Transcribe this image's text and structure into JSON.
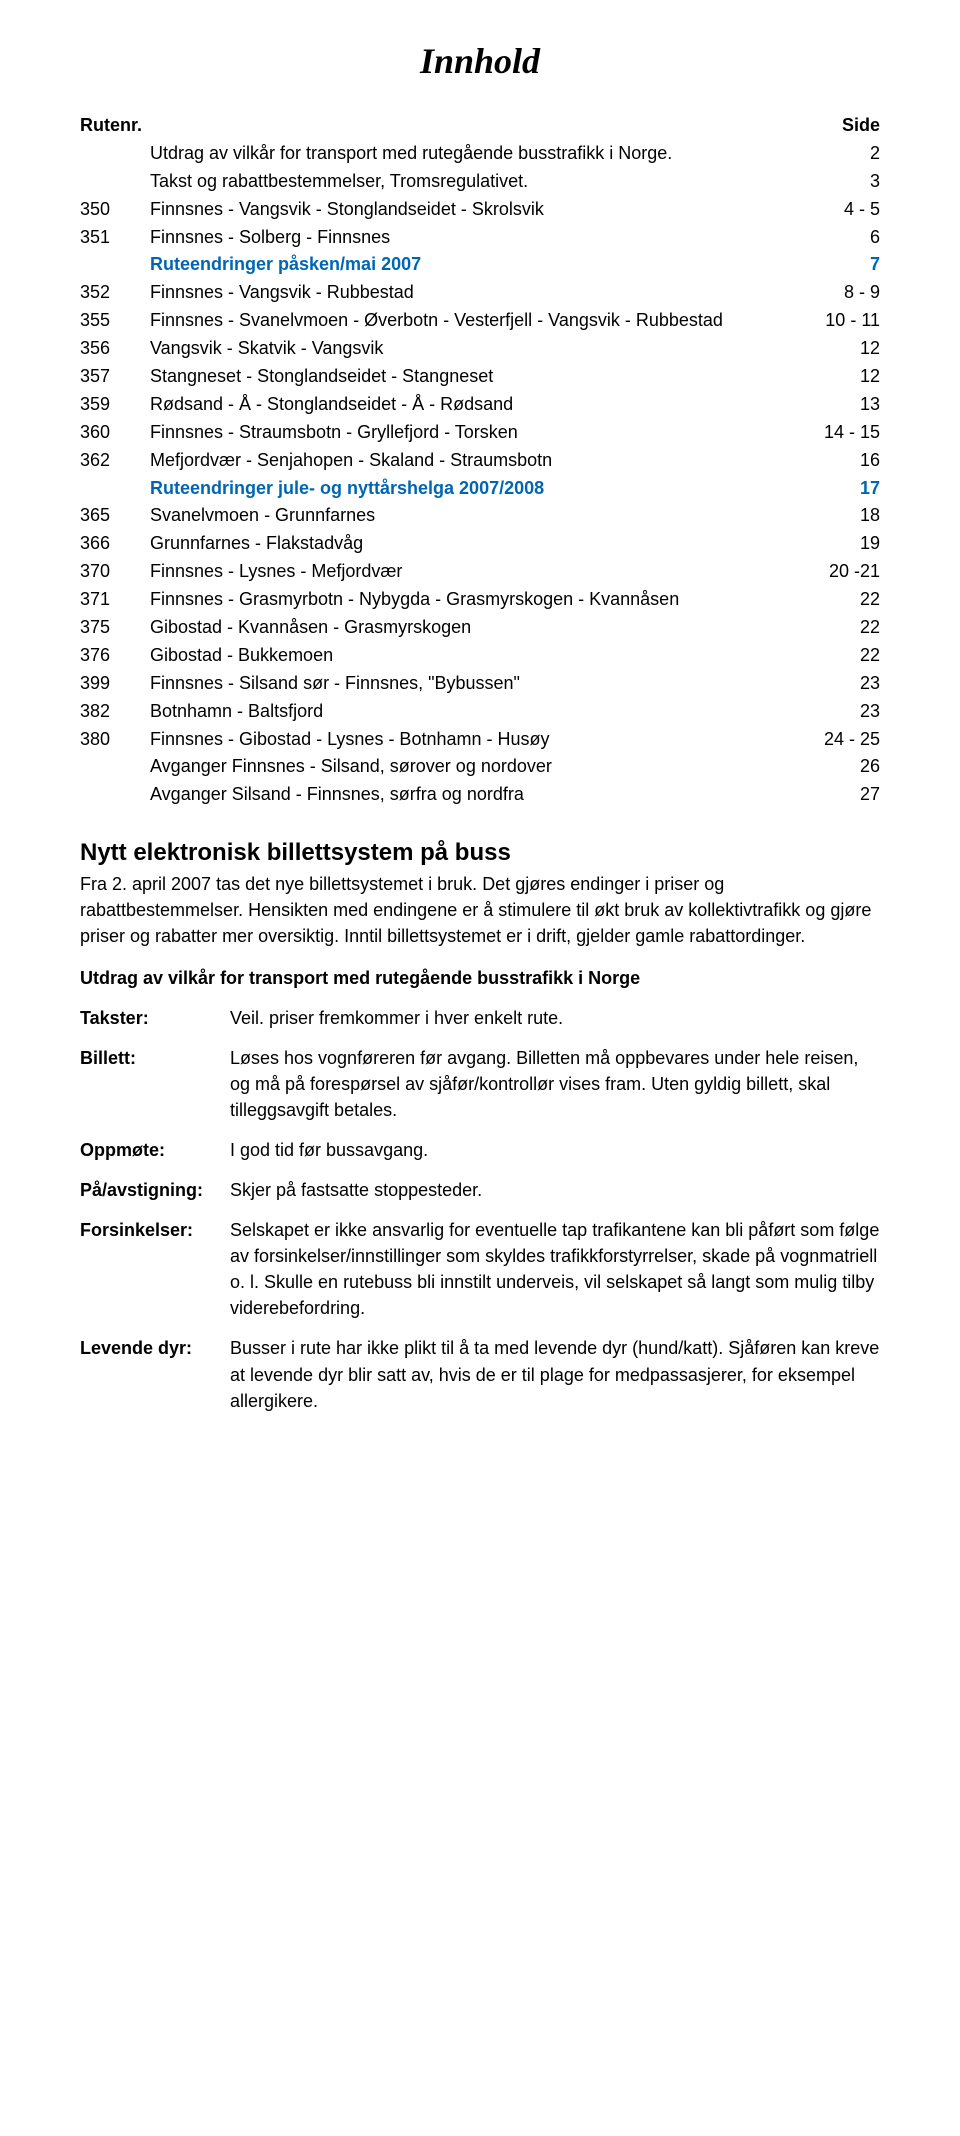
{
  "title": "Innhold",
  "toc_header": {
    "rutenr": "Rutenr.",
    "page": "Side"
  },
  "toc": [
    {
      "rutenr": "",
      "desc": "Utdrag av vilkår for transport med rutegående busstrafikk i Norge.",
      "page": "2"
    },
    {
      "rutenr": "",
      "desc": "Takst og rabattbestemmelser, Tromsregulativet.",
      "page": "3"
    },
    {
      "rutenr": "350",
      "desc": "Finnsnes - Vangsvik - Stonglandseidet - Skrolsvik",
      "page": "4 - 5"
    },
    {
      "rutenr": "351",
      "desc": "Finnsnes - Solberg - Finnsnes",
      "page": "6"
    },
    {
      "rutenr": "",
      "desc": "Ruteendringer påsken/mai 2007",
      "page": "7",
      "highlight": true
    },
    {
      "rutenr": "352",
      "desc": "Finnsnes - Vangsvik - Rubbestad",
      "page": "8 - 9"
    },
    {
      "rutenr": "355",
      "desc": "Finnsnes - Svanelvmoen - Øverbotn - Vesterfjell - Vangsvik - Rubbestad",
      "page": "10 - 11"
    },
    {
      "rutenr": "356",
      "desc": "Vangsvik - Skatvik - Vangsvik",
      "page": "12"
    },
    {
      "rutenr": "357",
      "desc": "Stangneset - Stonglandseidet - Stangneset",
      "page": "12"
    },
    {
      "rutenr": "359",
      "desc": "Rødsand - Å - Stonglandseidet - Å - Rødsand",
      "page": "13"
    },
    {
      "rutenr": "360",
      "desc": "Finnsnes - Straumsbotn - Gryllefjord - Torsken",
      "page": "14 - 15"
    },
    {
      "rutenr": "362",
      "desc": "Mefjordvær - Senjahopen - Skaland - Straumsbotn",
      "page": "16"
    },
    {
      "rutenr": "",
      "desc": "Ruteendringer jule- og nyttårshelga 2007/2008",
      "page": "17",
      "highlight": true
    },
    {
      "rutenr": "365",
      "desc": "Svanelvmoen - Grunnfarnes",
      "page": "18"
    },
    {
      "rutenr": "366",
      "desc": "Grunnfarnes - Flakstadvåg",
      "page": "19"
    },
    {
      "rutenr": "370",
      "desc": "Finnsnes - Lysnes - Mefjordvær",
      "page": "20 -21"
    },
    {
      "rutenr": "371",
      "desc": "Finnsnes - Grasmyrbotn - Nybygda - Grasmyrskogen - Kvannåsen",
      "page": "22"
    },
    {
      "rutenr": "375",
      "desc": "Gibostad - Kvannåsen - Grasmyrskogen",
      "page": "22"
    },
    {
      "rutenr": "376",
      "desc": "Gibostad - Bukkemoen",
      "page": "22"
    },
    {
      "rutenr": "399",
      "desc": "Finnsnes - Silsand sør - Finnsnes, \"Bybussen\"",
      "page": "23"
    },
    {
      "rutenr": "382",
      "desc": "Botnhamn - Baltsfjord",
      "page": "23"
    },
    {
      "rutenr": "380",
      "desc": "Finnsnes - Gibostad - Lysnes - Botnhamn - Husøy",
      "page": "24 - 25"
    },
    {
      "rutenr": "",
      "desc": "Avganger Finnsnes - Silsand, sørover og nordover",
      "page": "26"
    },
    {
      "rutenr": "",
      "desc": "Avganger Silsand - Finnsnes, sørfra og nordfra",
      "page": "27"
    }
  ],
  "section_heading": "Nytt elektronisk billettsystem på buss",
  "section_body": "Fra 2. april 2007 tas det nye billettsystemet i bruk. Det gjøres endinger i priser og rabattbestemmelser. Hensikten med endingene er å stimulere til økt bruk av kollektivtrafikk og gjøre priser og rabatter mer oversiktig. Inntil billettsystemet er i drift, gjelder gamle rabattordinger.",
  "sub_heading": "Utdrag av vilkår for transport med rutegående busstrafikk i Norge",
  "defs": [
    {
      "term": "Takster:",
      "body": "Veil. priser fremkommer i hver enkelt rute."
    },
    {
      "term": "Billett:",
      "body": "Løses hos vognføreren før avgang. Billetten må oppbevares under hele reisen, og må på forespørsel av sjåfør/kontrollør vises fram. Uten gyldig billett, skal tilleggsavgift betales."
    },
    {
      "term": "Oppmøte:",
      "body": "I god tid før bussavgang."
    },
    {
      "term": "På/avstigning:",
      "body": "Skjer på fastsatte stoppesteder."
    },
    {
      "term": "Forsinkelser:",
      "body": "Selskapet er ikke ansvarlig for eventuelle tap trafikantene kan bli påført som følge av forsinkelser/innstillinger som skyldes trafikkforstyrrelser, skade på vognmatriell o. l. Skulle en rutebuss bli innstilt underveis, vil selskapet så langt som mulig tilby viderebefordring."
    },
    {
      "term": "Levende dyr:",
      "body": "Busser i rute har ikke plikt til å ta med levende dyr (hund/katt). Sjåføren kan kreve at levende dyr blir satt av, hvis de er til plage for medpassasjerer, for eksempel allergikere."
    }
  ],
  "colors": {
    "highlight": "#0066b3",
    "text": "#000000",
    "background": "#ffffff"
  }
}
